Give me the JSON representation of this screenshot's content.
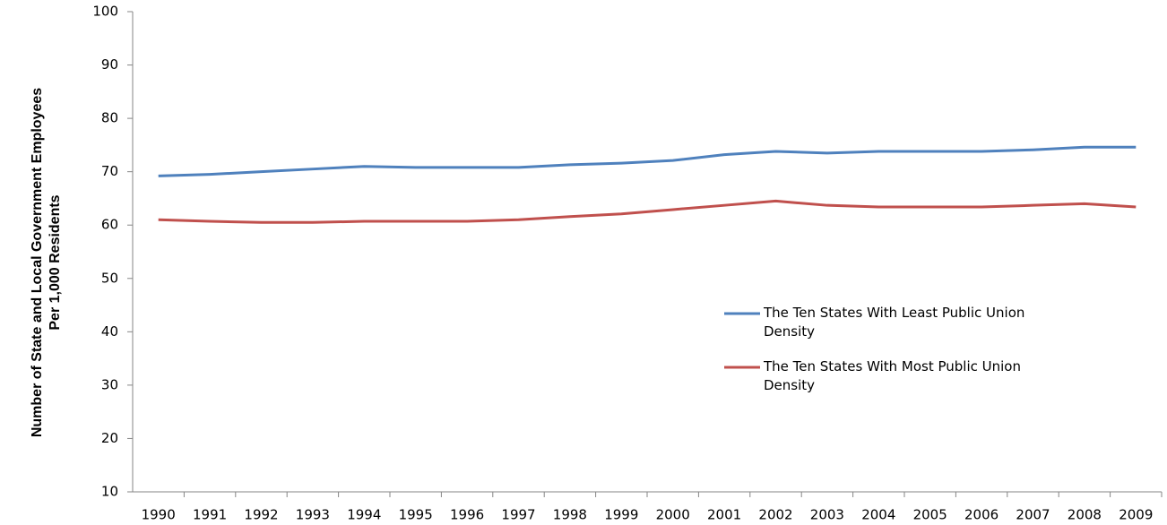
{
  "chart_data": {
    "type": "line",
    "y_label": "Number of State and Local Government Employees Per 1,000 Residents",
    "categories": [
      "1990",
      "1991",
      "1992",
      "1993",
      "1994",
      "1995",
      "1996",
      "1997",
      "1998",
      "1999",
      "2000",
      "2001",
      "2002",
      "2003",
      "2004",
      "2005",
      "2006",
      "2007",
      "2008",
      "2009"
    ],
    "series": [
      {
        "name": "The Ten States With Least Public Union Density",
        "color": "#4f81bd",
        "values": [
          69.2,
          69.5,
          70,
          70.5,
          71,
          70.8,
          70.8,
          70.8,
          71.3,
          71.6,
          72.1,
          73.2,
          73.8,
          73.5,
          73.8,
          73.8,
          73.8,
          74.1,
          74.6,
          74.6
        ]
      },
      {
        "name": "The Ten States With Most Public Union Density",
        "color": "#c0504d",
        "values": [
          61,
          60.7,
          60.5,
          60.5,
          60.7,
          60.7,
          60.7,
          61,
          61.6,
          62.1,
          62.9,
          63.7,
          64.5,
          63.7,
          63.4,
          63.4,
          63.4,
          63.7,
          64,
          63.4
        ]
      }
    ],
    "ylim": [
      10,
      100
    ],
    "yticks": [
      10,
      20,
      30,
      40,
      50,
      60,
      70,
      80,
      90,
      100
    ],
    "grid": false
  }
}
